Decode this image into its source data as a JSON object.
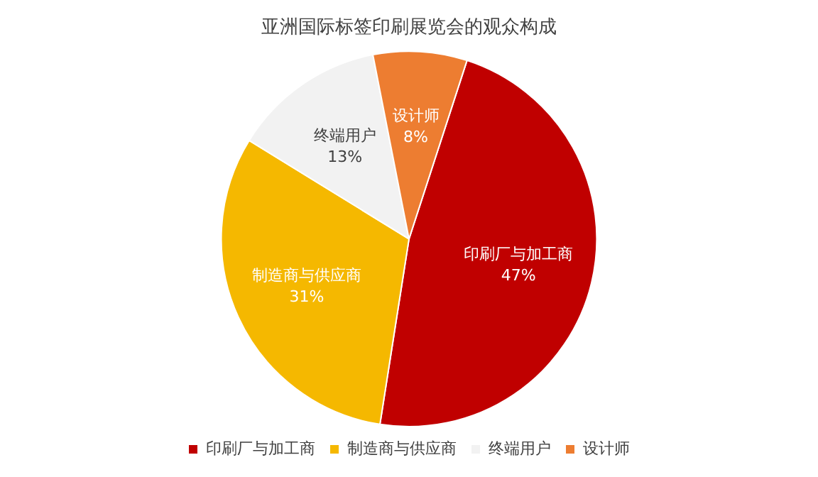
{
  "chart_data": {
    "type": "pie",
    "title": "亚洲国际标签印刷展览会的观众构成",
    "categories": [
      "印刷厂与加工商",
      "制造商与供应商",
      "终端用户",
      "设计师"
    ],
    "values": [
      47,
      31,
      13,
      8
    ],
    "value_labels": [
      "47%",
      "31%",
      "13%",
      "8%"
    ],
    "colors": [
      "#c00000",
      "#f5b800",
      "#f2f2f2",
      "#ed7d31"
    ],
    "legend": "bottom"
  }
}
